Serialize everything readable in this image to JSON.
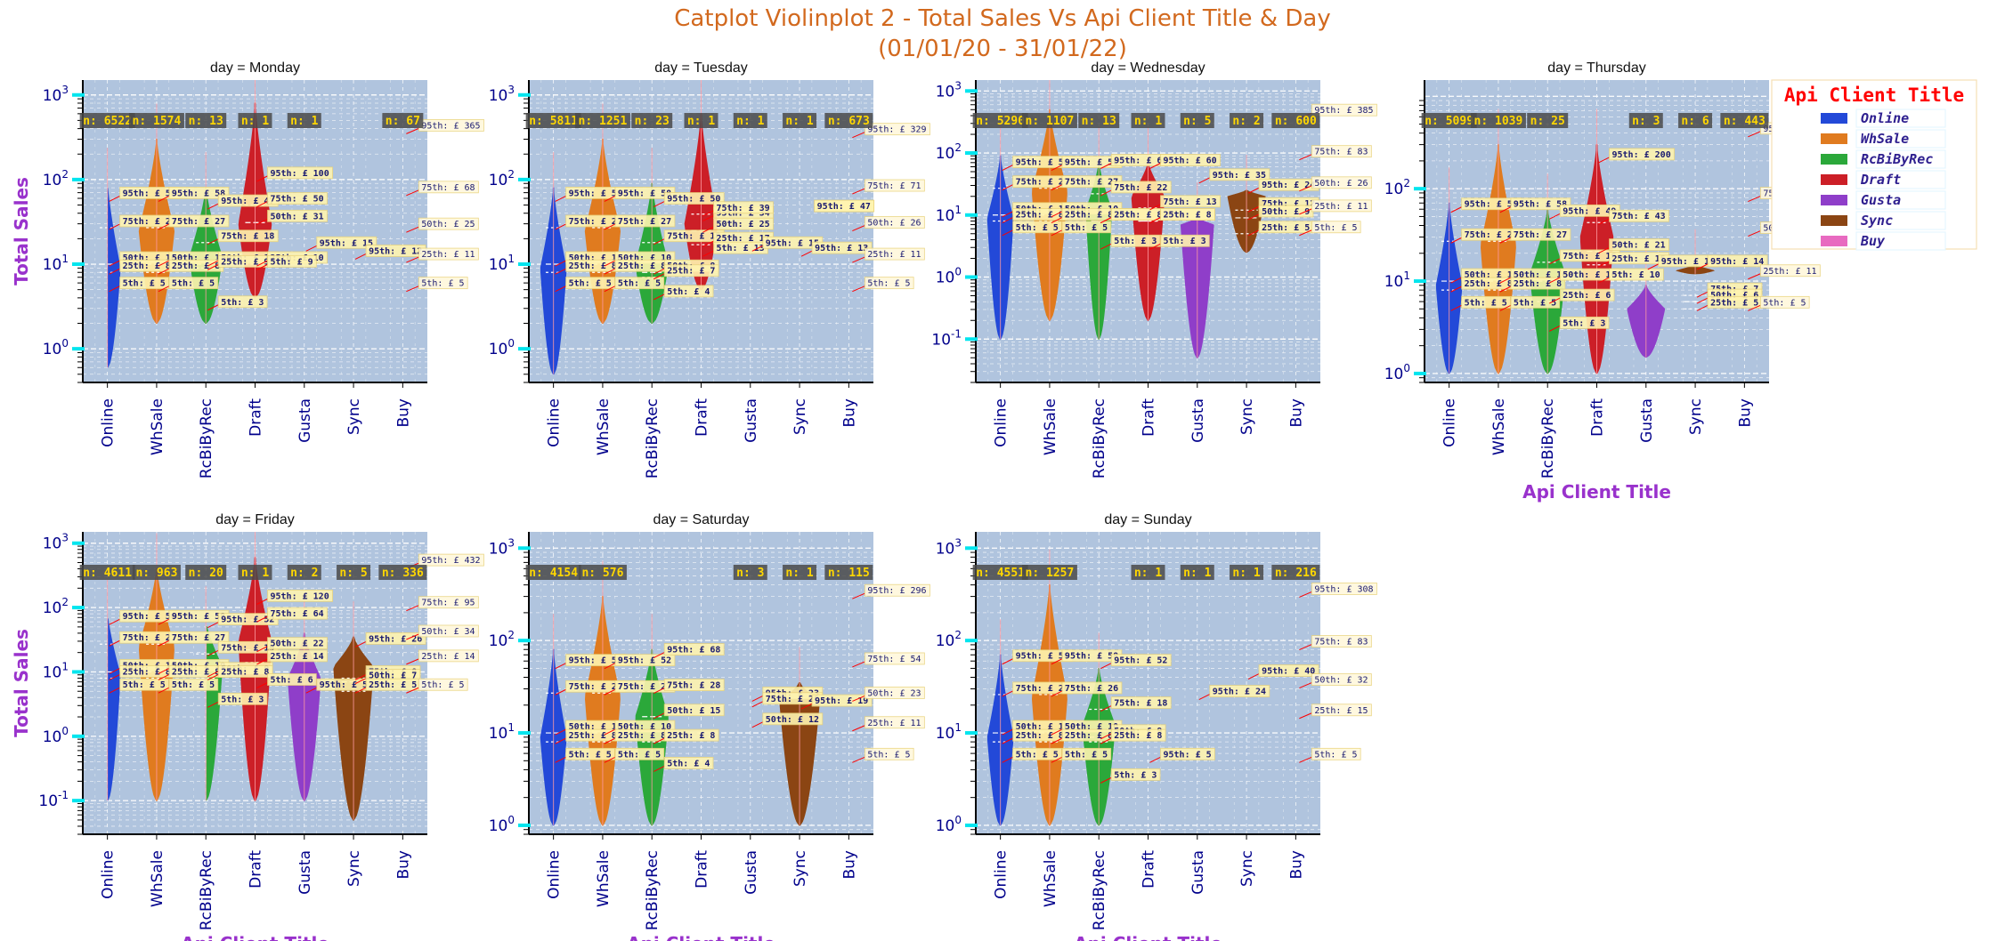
{
  "figure": {
    "title_line1": "Catplot Violinplot 2 - Total Sales Vs Api Client Title & Day",
    "title_line2": "(01/01/20 - 31/01/22)"
  },
  "colors": {
    "Online": "#2349d8",
    "WhSale": "#e07b1f",
    "RcBiByRec": "#2ba83a",
    "Draft": "#cc1f27",
    "Gusta": "#8f3ec9",
    "Sync": "#8b4513",
    "Buy": "#e86ac0",
    "plot_bg": "#b0c4de",
    "nbox_bg": "#4a4a4a",
    "nbox_text": "#ffd700"
  },
  "legend": {
    "title": "Api Client Title",
    "entries": [
      "Online",
      "WhSale",
      "RcBiByRec",
      "Draft",
      "Gusta",
      "Sync",
      "Buy"
    ]
  },
  "chart_data": [
    {
      "type": "violin",
      "title": "day = Monday",
      "ylabel": "Total Sales",
      "xlabel": "",
      "yscale": "log",
      "categories": [
        "Online",
        "WhSale",
        "RcBiByRec",
        "Draft",
        "Gusta",
        "Sync",
        "Buy"
      ],
      "ylim": [
        0.4,
        1500
      ],
      "yticks": [
        "10^0",
        "10^1",
        "10^2",
        "10^3"
      ],
      "n_labels": [
        "n: 6522",
        "n: 1574",
        "n: 13",
        "n: 1",
        "n: 1",
        "",
        "n: 67"
      ],
      "percentiles": [
        {
          "p95": 58,
          "p75": 27,
          "p50": 10,
          "p25": 8,
          "p5": 5
        },
        {
          "p95": 58,
          "p75": 27,
          "p50": 10,
          "p25": 8,
          "p5": 5
        },
        {
          "p95": 47,
          "p75": 18,
          "p50": 10,
          "p25": 9,
          "p5": 3
        },
        {
          "p95": 100,
          "p75": 50,
          "p50": 31,
          "p25": 10,
          "p5": 9
        },
        {
          "p95": 15
        },
        {
          "p95": 12
        },
        {
          "p95": 365,
          "p75": 68,
          "p50": 25,
          "p25": 11,
          "p5": 5
        }
      ],
      "violins": [
        {
          "lo": 0.6,
          "hi": 90,
          "mode": 9,
          "width": 0.55
        },
        {
          "lo": 2,
          "hi": 300,
          "mode": 25,
          "width": 0.75
        },
        {
          "lo": 2,
          "hi": 80,
          "mode": 12,
          "width": 0.7
        },
        {
          "lo": 4,
          "hi": 800,
          "mode": 30,
          "width": 0.7
        },
        null,
        null,
        null
      ]
    },
    {
      "type": "violin",
      "title": "day = Tuesday",
      "ylabel": "",
      "xlabel": "",
      "yscale": "log",
      "categories": [
        "Online",
        "WhSale",
        "RcBiByRec",
        "Draft",
        "Gusta",
        "Sync",
        "Buy"
      ],
      "ylim": [
        0.4,
        1500
      ],
      "yticks": [
        "10^0",
        "10^1",
        "10^2",
        "10^3"
      ],
      "n_labels": [
        "n: 5811",
        "n: 1251",
        "n: 23",
        "n: 1",
        "n: 1",
        "n: 1",
        "n: 673"
      ],
      "percentiles": [
        {
          "p95": 58,
          "p75": 27,
          "p50": 10,
          "p25": 8,
          "p5": 5
        },
        {
          "p95": 58,
          "p75": 27,
          "p50": 10,
          "p25": 8,
          "p5": 5
        },
        {
          "p95": 50,
          "p75": 18,
          "p50": 8,
          "p25": 7,
          "p5": 4
        },
        {
          "p95": 34,
          "p75": 39,
          "p50": 25,
          "p25": 17,
          "p5": 13
        },
        {
          "p95": 15
        },
        {
          "p95": 13
        },
        {
          "p95": 329,
          "p75": 71,
          "p50": 26,
          "p25": 11,
          "p5": 5
        }
      ],
      "violins": [
        {
          "lo": 0.5,
          "hi": 80,
          "mode": 9,
          "width": 0.55
        },
        {
          "lo": 2,
          "hi": 300,
          "mode": 25,
          "width": 0.75
        },
        {
          "lo": 2,
          "hi": 90,
          "mode": 10,
          "width": 0.7
        },
        {
          "lo": 5,
          "hi": 600,
          "mode": 30,
          "width": 0.7
        },
        null,
        null,
        null
      ],
      "extra_labels": [
        {
          "x": 5.8,
          "y": 47,
          "text": "95th: £ 47"
        }
      ]
    },
    {
      "type": "violin",
      "title": "day = Wednesday",
      "ylabel": "",
      "xlabel": "",
      "yscale": "log",
      "categories": [
        "Online",
        "WhSale",
        "RcBiByRec",
        "Draft",
        "Gusta",
        "Sync",
        "Buy"
      ],
      "ylim": [
        0.02,
        1500
      ],
      "yticks": [
        "10^-1",
        "10^0",
        "10^1",
        "10^2",
        "10^3"
      ],
      "n_labels": [
        "n: 5290",
        "n: 1107",
        "n: 13",
        "n: 1",
        "n: 5",
        "n: 2",
        "n: 600"
      ],
      "percentiles": [
        {
          "p95": 56,
          "p75": 27,
          "p50": 10,
          "p25": 8,
          "p5": 5
        },
        {
          "p95": 56,
          "p75": 27,
          "p50": 10,
          "p25": 8,
          "p5": 5
        },
        {
          "p95": 60,
          "p75": 22,
          "p50": 8,
          "p25": 8,
          "p5": 3
        },
        {
          "p95": 60,
          "p75": 13,
          "p50": 8,
          "p25": 8,
          "p5": 3
        },
        {
          "p95": 35
        },
        {
          "p95": 24,
          "p75": 12,
          "p50": 9,
          "p25": 5
        },
        {
          "p95": 385,
          "p75": 83,
          "p50": 26,
          "p25": 11,
          "p5": 5
        }
      ],
      "violins": [
        {
          "lo": 0.1,
          "hi": 90,
          "mode": 9,
          "width": 0.55
        },
        {
          "lo": 0.2,
          "hi": 500,
          "mode": 25,
          "width": 0.75
        },
        {
          "lo": 0.1,
          "hi": 70,
          "mode": 12,
          "width": 0.55
        },
        {
          "lo": 0.2,
          "hi": 70,
          "mode": 20,
          "width": 0.7
        },
        {
          "lo": 0.05,
          "hi": 9,
          "mode": 7,
          "width": 0.7
        },
        {
          "lo": 2.5,
          "hi": 25,
          "mode": 20,
          "width": 0.8
        },
        null
      ]
    },
    {
      "type": "violin",
      "title": "day = Thursday",
      "ylabel": "",
      "xlabel": "Api Client Title",
      "yscale": "log",
      "categories": [
        "Online",
        "WhSale",
        "RcBiByRec",
        "Draft",
        "Gusta",
        "Sync",
        "Buy"
      ],
      "ylim": [
        0.8,
        1500
      ],
      "yticks": [
        "10^0",
        "10^1",
        "10^2"
      ],
      "n_labels": [
        "n: 5099",
        "n: 1039",
        "n: 25",
        "",
        "n: 3",
        "n: 6",
        "n: 443"
      ],
      "percentiles": [
        {
          "p95": 58,
          "p75": 27,
          "p50": 10,
          "p25": 8,
          "p5": 5
        },
        {
          "p95": 58,
          "p75": 27,
          "p50": 10,
          "p25": 8,
          "p5": 5
        },
        {
          "p95": 49,
          "p75": 16,
          "p50": 10,
          "p25": 6,
          "p5": 3
        },
        {
          "p95": 200,
          "p75": 43,
          "p50": 21,
          "p25": 15,
          "p5": 10
        },
        {
          "p95": 14
        },
        {
          "p95": 14,
          "p75": 7,
          "p50": 6,
          "p25": 5
        },
        {
          "p95": 381,
          "p75": 76,
          "p50": 32,
          "p25": 11,
          "p5": 5
        }
      ],
      "violins": [
        {
          "lo": 1,
          "hi": 70,
          "mode": 9,
          "width": 0.55
        },
        {
          "lo": 1,
          "hi": 300,
          "mode": 25,
          "width": 0.75
        },
        {
          "lo": 1,
          "hi": 60,
          "mode": 12,
          "width": 0.75
        },
        {
          "lo": 1,
          "hi": 300,
          "mode": 30,
          "width": 0.7
        },
        {
          "lo": 1.5,
          "hi": 9,
          "mode": 5,
          "width": 0.8
        },
        {
          "lo": 12,
          "hi": 15,
          "mode": 13,
          "width": 0.8
        },
        null
      ]
    },
    {
      "type": "violin",
      "title": "day = Friday",
      "ylabel": "Total Sales",
      "xlabel": "Api Client Title",
      "yscale": "log",
      "categories": [
        "Online",
        "WhSale",
        "RcBiByRec",
        "Draft",
        "Gusta",
        "Sync",
        "Buy"
      ],
      "ylim": [
        0.03,
        1500
      ],
      "yticks": [
        "10^-1",
        "10^0",
        "10^1",
        "10^2",
        "10^3"
      ],
      "n_labels": [
        "n: 4611",
        "n: 963",
        "n: 20",
        "n: 1",
        "n: 2",
        "n: 5",
        "n: 336"
      ],
      "percentiles": [
        {
          "p95": 58,
          "p75": 27,
          "p50": 10,
          "p25": 8,
          "p5": 5
        },
        {
          "p95": 58,
          "p75": 27,
          "p50": 10,
          "p25": 8,
          "p5": 5
        },
        {
          "p95": 52,
          "p75": 19,
          "p50": 9,
          "p25": 8,
          "p5": 3
        },
        {
          "p95": 120,
          "p75": 64,
          "p50": 22,
          "p25": 14,
          "p5": 6
        },
        {
          "p95": 5
        },
        {
          "p95": 26,
          "p75": 8,
          "p50": 7,
          "p25": 5
        },
        {
          "p95": 432,
          "p75": 95,
          "p50": 34,
          "p25": 14,
          "p5": 5
        }
      ],
      "violins": [
        {
          "lo": 0.1,
          "hi": 80,
          "mode": 9,
          "width": 0.55
        },
        {
          "lo": 0.1,
          "hi": 400,
          "mode": 25,
          "width": 0.75
        },
        {
          "lo": 0.1,
          "hi": 60,
          "mode": 12,
          "width": 0.7
        },
        {
          "lo": 0.1,
          "hi": 600,
          "mode": 30,
          "width": 0.7
        },
        {
          "lo": 0.1,
          "hi": 40,
          "mode": 8,
          "width": 0.7
        },
        {
          "lo": 0.05,
          "hi": 35,
          "mode": 12,
          "width": 0.85
        },
        null
      ]
    },
    {
      "type": "violin",
      "title": "day = Saturday",
      "ylabel": "",
      "xlabel": "Api Client Title",
      "yscale": "log",
      "categories": [
        "Online",
        "WhSale",
        "RcBiByRec",
        "Draft",
        "Gusta",
        "Sync",
        "Buy"
      ],
      "ylim": [
        0.8,
        1500
      ],
      "yticks": [
        "10^0",
        "10^1",
        "10^2",
        "10^3"
      ],
      "n_labels": [
        "n: 4154",
        "n: 576",
        "",
        "",
        "n: 3",
        "n: 1",
        "n: 115"
      ],
      "percentiles": [
        {
          "p95": 52,
          "p75": 27,
          "p50": 10,
          "p25": 8,
          "p5": 5
        },
        {
          "p95": 52,
          "p75": 27,
          "p50": 10,
          "p25": 8,
          "p5": 5
        },
        {
          "p95": 68,
          "p75": 28,
          "p50": 15,
          "p25": 8,
          "p5": 4
        },
        null,
        {
          "p95": 23,
          "p75": 20,
          "p50": 12
        },
        {
          "p95": 19
        },
        {
          "p95": 296,
          "p75": 54,
          "p50": 23,
          "p25": 11,
          "p5": 5
        }
      ],
      "violins": [
        {
          "lo": 1,
          "hi": 80,
          "mode": 9,
          "width": 0.55
        },
        {
          "lo": 1,
          "hi": 300,
          "mode": 25,
          "width": 0.75
        },
        {
          "lo": 1,
          "hi": 80,
          "mode": 15,
          "width": 0.7
        },
        null,
        null,
        {
          "lo": 1,
          "hi": 35,
          "mode": 22,
          "width": 0.85
        },
        null
      ]
    },
    {
      "type": "violin",
      "title": "day = Sunday",
      "ylabel": "",
      "xlabel": "Api Client Title",
      "yscale": "log",
      "categories": [
        "Online",
        "WhSale",
        "RcBiByRec",
        "Draft",
        "Gusta",
        "Sync",
        "Buy"
      ],
      "ylim": [
        0.8,
        1500
      ],
      "yticks": [
        "10^0",
        "10^1",
        "10^2",
        "10^3"
      ],
      "n_labels": [
        "n: 4551",
        "n: 1257",
        "",
        "n: 1",
        "n: 1",
        "n: 1",
        "n: 216"
      ],
      "percentiles": [
        {
          "p95": 58,
          "p75": 26,
          "p50": 10,
          "p25": 8,
          "p5": 5
        },
        {
          "p95": 58,
          "p75": 26,
          "p50": 10,
          "p25": 8,
          "p5": 5
        },
        {
          "p95": 52,
          "p75": 18,
          "p50": 9,
          "p25": 8,
          "p5": 3
        },
        {
          "p95": 5
        },
        {
          "p95": 24
        },
        {
          "p95": 40
        },
        {
          "p95": 308,
          "p75": 83,
          "p50": 32,
          "p25": 15,
          "p5": 5
        }
      ],
      "violins": [
        {
          "lo": 1,
          "hi": 70,
          "mode": 9,
          "width": 0.55
        },
        {
          "lo": 1,
          "hi": 400,
          "mode": 25,
          "width": 0.75
        },
        {
          "lo": 1,
          "hi": 50,
          "mode": 12,
          "width": 0.7
        },
        null,
        null,
        null,
        null
      ]
    }
  ]
}
